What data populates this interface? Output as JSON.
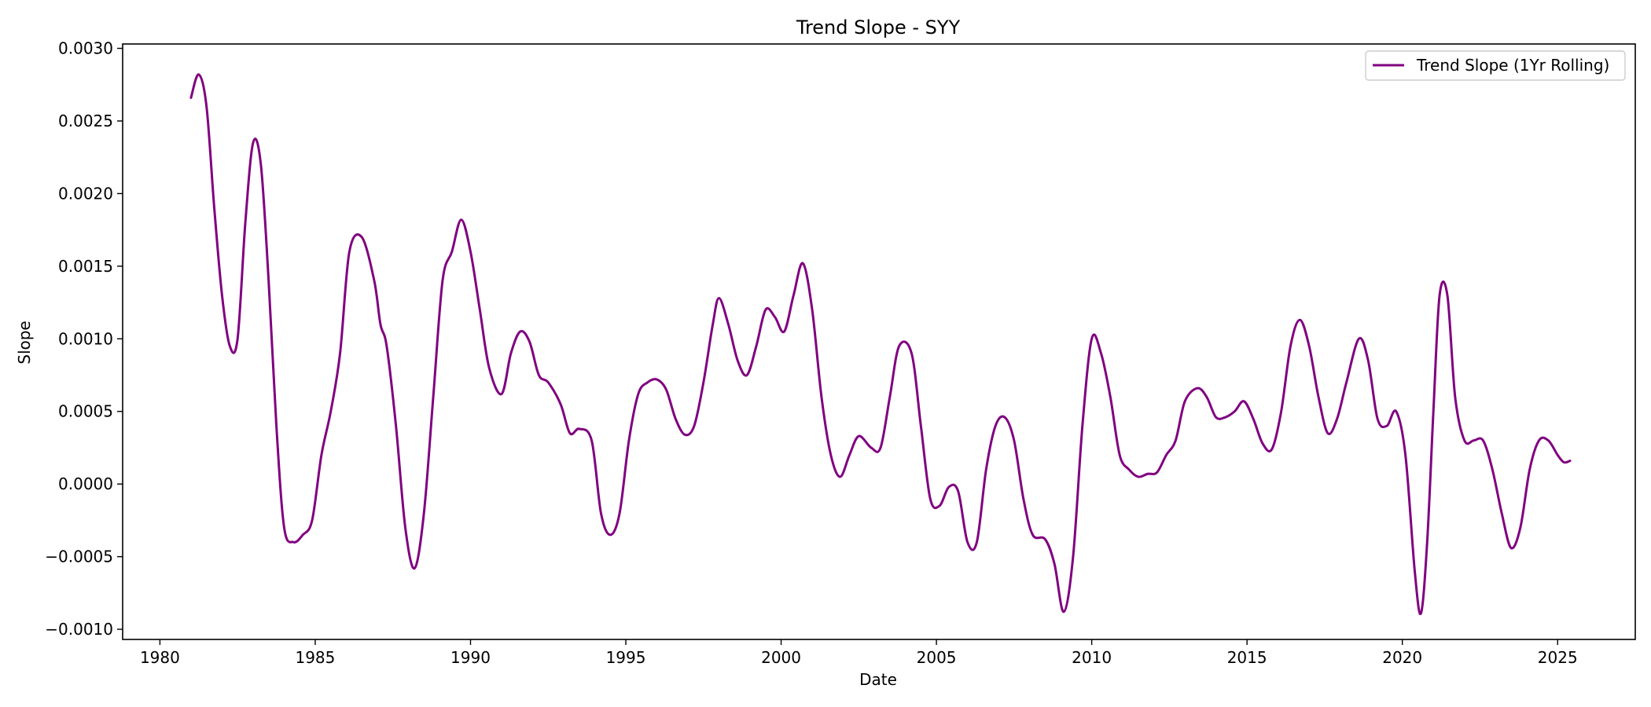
{
  "chart_data": {
    "type": "line",
    "title": "Trend Slope - SYY",
    "xlabel": "Date",
    "ylabel": "Slope",
    "xlim": [
      1978.8,
      2027.5
    ],
    "ylim": [
      -0.00107,
      0.00303
    ],
    "xticks": [
      1980,
      1985,
      1990,
      1995,
      2000,
      2005,
      2010,
      2015,
      2020,
      2025
    ],
    "xtick_labels": [
      "1980",
      "1985",
      "1990",
      "1995",
      "2000",
      "2005",
      "2010",
      "2015",
      "2020",
      "2025"
    ],
    "yticks": [
      -0.001,
      -0.0005,
      0.0,
      0.0005,
      0.001,
      0.0015,
      0.002,
      0.0025,
      0.003
    ],
    "ytick_labels": [
      "−0.0010",
      "−0.0005",
      "0.0000",
      "0.0005",
      "0.0010",
      "0.0015",
      "0.0020",
      "0.0025",
      "0.0030"
    ],
    "grid": false,
    "legend_position": "top-right",
    "series": [
      {
        "name": "Trend Slope (1Yr Rolling)",
        "color": "#800080",
        "x": [
          1981.0,
          1981.25,
          1981.5,
          1981.75,
          1982.0,
          1982.25,
          1982.5,
          1982.75,
          1983.0,
          1983.25,
          1983.5,
          1983.75,
          1984.0,
          1984.3,
          1984.6,
          1984.9,
          1985.2,
          1985.5,
          1985.8,
          1986.1,
          1986.5,
          1986.9,
          1987.1,
          1987.3,
          1987.6,
          1987.9,
          1988.2,
          1988.5,
          1988.8,
          1989.1,
          1989.4,
          1989.7,
          1990.0,
          1990.3,
          1990.6,
          1991.0,
          1991.3,
          1991.6,
          1991.9,
          1992.2,
          1992.5,
          1992.9,
          1993.2,
          1993.5,
          1993.9,
          1994.2,
          1994.5,
          1994.8,
          1995.1,
          1995.4,
          1995.7,
          1996.0,
          1996.3,
          1996.6,
          1996.9,
          1997.2,
          1997.5,
          1997.8,
          1998.0,
          1998.3,
          1998.6,
          1998.9,
          1999.2,
          1999.5,
          1999.8,
          2000.1,
          2000.4,
          2000.7,
          2001.0,
          2001.3,
          2001.6,
          2001.9,
          2002.2,
          2002.5,
          2002.9,
          2003.2,
          2003.5,
          2003.8,
          2004.2,
          2004.5,
          2004.8,
          2005.1,
          2005.4,
          2005.7,
          2006.0,
          2006.3,
          2006.6,
          2006.9,
          2007.2,
          2007.5,
          2007.8,
          2008.1,
          2008.5,
          2008.8,
          2009.1,
          2009.4,
          2009.7,
          2010.0,
          2010.3,
          2010.6,
          2010.9,
          2011.2,
          2011.5,
          2011.8,
          2012.1,
          2012.4,
          2012.7,
          2013.0,
          2013.4,
          2013.7,
          2014.0,
          2014.3,
          2014.6,
          2014.9,
          2015.2,
          2015.5,
          2015.8,
          2016.1,
          2016.4,
          2016.7,
          2017.0,
          2017.3,
          2017.6,
          2017.9,
          2018.2,
          2018.6,
          2018.9,
          2019.2,
          2019.5,
          2019.8,
          2020.1,
          2020.4,
          2020.6,
          2020.8,
          2021.0,
          2021.2,
          2021.45,
          2021.7,
          2022.0,
          2022.3,
          2022.6,
          2022.9,
          2023.2,
          2023.5,
          2023.8,
          2024.1,
          2024.4,
          2024.7,
          2025.0,
          2025.2,
          2025.4
        ],
        "y": [
          0.00266,
          0.00282,
          0.0026,
          0.0019,
          0.0013,
          0.00095,
          0.001,
          0.0018,
          0.00235,
          0.0022,
          0.0014,
          0.0004,
          -0.0003,
          -0.0004,
          -0.00035,
          -0.00025,
          0.0002,
          0.0005,
          0.0009,
          0.0016,
          0.0017,
          0.0014,
          0.0011,
          0.00095,
          0.0004,
          -0.0003,
          -0.00058,
          -0.0002,
          0.0006,
          0.0014,
          0.0016,
          0.00182,
          0.0016,
          0.0012,
          0.0008,
          0.00062,
          0.0009,
          0.00105,
          0.00098,
          0.00075,
          0.0007,
          0.00055,
          0.00035,
          0.00038,
          0.0003,
          -0.0002,
          -0.00035,
          -0.0002,
          0.0003,
          0.00062,
          0.0007,
          0.00072,
          0.00065,
          0.00045,
          0.00034,
          0.0004,
          0.0007,
          0.0011,
          0.00128,
          0.0011,
          0.00085,
          0.00075,
          0.00095,
          0.0012,
          0.00115,
          0.00105,
          0.0013,
          0.00152,
          0.0012,
          0.0006,
          0.0002,
          5e-05,
          0.0002,
          0.00033,
          0.00025,
          0.00025,
          0.0006,
          0.00095,
          0.0009,
          0.0004,
          -0.0001,
          -0.00015,
          -2e-05,
          -5e-05,
          -0.0004,
          -0.0004,
          0.0001,
          0.0004,
          0.00046,
          0.0003,
          -0.0001,
          -0.00035,
          -0.00038,
          -0.00055,
          -0.00088,
          -0.0005,
          0.0004,
          0.001,
          0.0009,
          0.0006,
          0.0002,
          0.0001,
          5e-05,
          7e-05,
          8e-05,
          0.0002,
          0.0003,
          0.00057,
          0.00066,
          0.0006,
          0.00046,
          0.00046,
          0.0005,
          0.00057,
          0.00045,
          0.00028,
          0.00024,
          0.0005,
          0.00095,
          0.00113,
          0.00095,
          0.0006,
          0.00035,
          0.00045,
          0.0007,
          0.001,
          0.00085,
          0.00045,
          0.0004,
          0.0005,
          0.0002,
          -0.0006,
          -0.00089,
          -0.0004,
          0.0005,
          0.0013,
          0.0013,
          0.0006,
          0.0003,
          0.0003,
          0.0003,
          0.0001,
          -0.0002,
          -0.00044,
          -0.0003,
          0.0001,
          0.0003,
          0.0003,
          0.0002,
          0.00015,
          0.00016
        ]
      }
    ]
  }
}
